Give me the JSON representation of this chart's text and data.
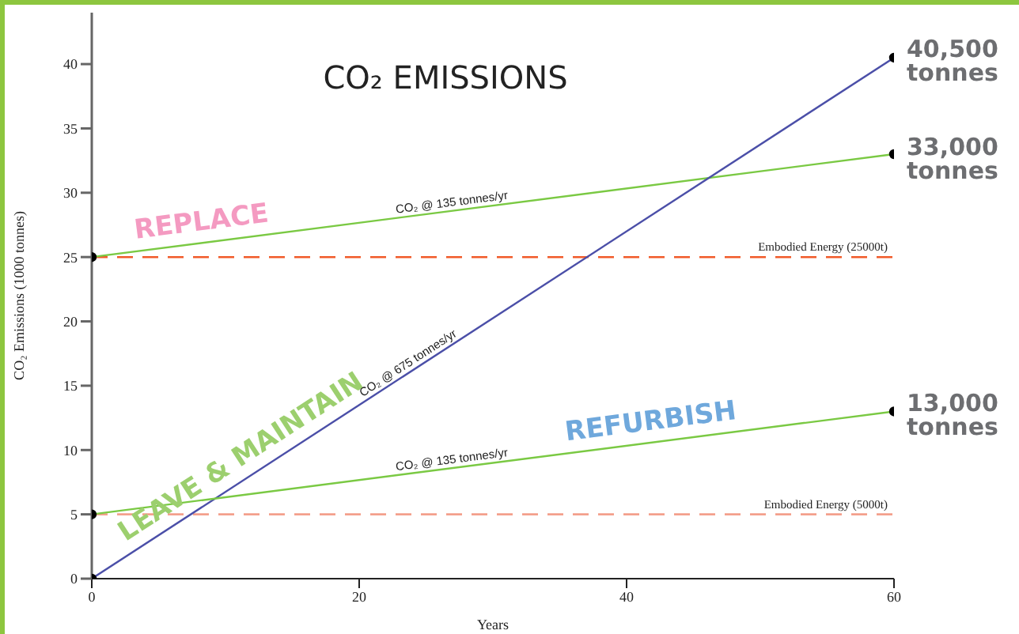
{
  "chart_data": {
    "type": "line",
    "title": "CO₂ EMISSIONS",
    "xlabel": "Years",
    "ylabel": "CO₂ Emissions (1000 tonnes)",
    "xlim": [
      0,
      60
    ],
    "xticks": [
      0,
      20,
      40,
      60
    ],
    "ylim": [
      0,
      44
    ],
    "yticks": [
      0,
      5,
      10,
      15,
      20,
      25,
      30,
      35,
      40
    ],
    "grid": false,
    "legend": false,
    "marker": "circle",
    "line_style": "solid",
    "x": [
      0,
      60
    ],
    "series": [
      {
        "name": "REPLACE",
        "color": "#7ac943",
        "values": [
          25,
          33
        ]
      },
      {
        "name": "LEAVE & MAINTAIN",
        "color": "#4b4fa8",
        "values": [
          0,
          40.5
        ]
      },
      {
        "name": "REFURBISH",
        "color": "#7ac943",
        "values": [
          5,
          13
        ]
      }
    ],
    "ref_lines": [
      {
        "axis": "y",
        "value": 25,
        "label": "Embodied Energy (25000t)",
        "color": "#f15a29",
        "line_style": "dashed"
      },
      {
        "axis": "y",
        "value": 5,
        "label": "Embodied Energy (5000t)",
        "color": "#f4a08c",
        "line_style": "dashed"
      }
    ],
    "annotations": [
      {
        "text": "CO₂ @ 135 tonnes/yr",
        "x": 27,
        "y": 28.6
      },
      {
        "text": "CO₂ @ 675 tonnes/yr",
        "x": 24,
        "y": 16.2
      },
      {
        "text": "CO₂ @ 135 tonnes/yr",
        "x": 27,
        "y": 8.6
      },
      {
        "text": "40,500 tonnes",
        "x": 60,
        "y": 40.5
      },
      {
        "text": "33,000 tonnes",
        "x": 60,
        "y": 33
      },
      {
        "text": "13,000 tonnes",
        "x": 60,
        "y": 13
      }
    ]
  }
}
